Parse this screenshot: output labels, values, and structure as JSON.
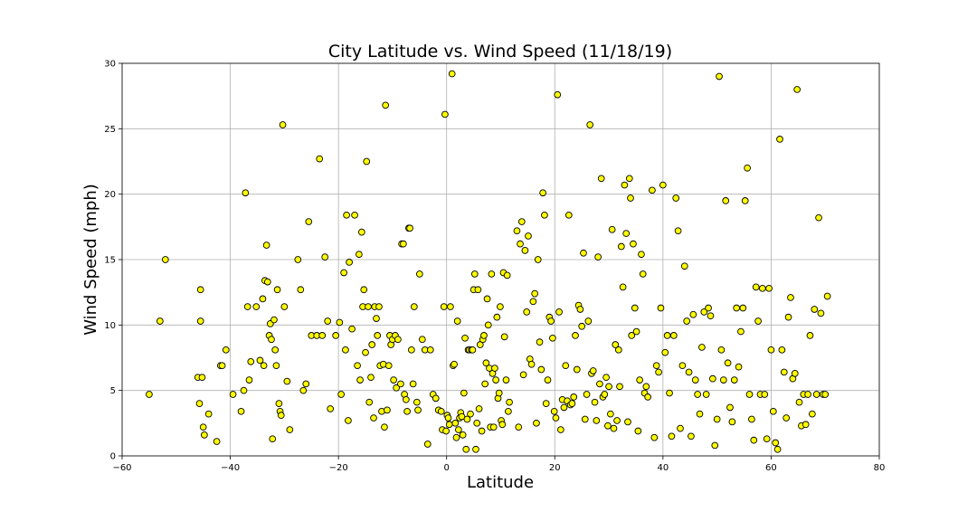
{
  "chart_data": {
    "type": "scatter",
    "title": "City Latitude vs. Wind Speed (11/18/19)",
    "xlabel": "Latitude",
    "ylabel": "Wind Speed (mph)",
    "xlim": [
      -60,
      80
    ],
    "ylim": [
      0,
      30
    ],
    "xticks": [
      -60,
      -40,
      -20,
      0,
      20,
      40,
      60,
      80
    ],
    "yticks": [
      0,
      5,
      10,
      15,
      20,
      25,
      30
    ],
    "grid": true,
    "marker_color": "#ffff00",
    "marker_edge": "#000000",
    "grid_color": "#b0b0b0",
    "points": [
      [
        -55,
        4.7
      ],
      [
        -53,
        10.3
      ],
      [
        -52,
        15
      ],
      [
        -46,
        6
      ],
      [
        -45.7,
        4
      ],
      [
        -45.5,
        12.7
      ],
      [
        -45.5,
        10.3
      ],
      [
        -45.2,
        6
      ],
      [
        -45,
        2.2
      ],
      [
        -44.8,
        1.6
      ],
      [
        -44,
        3.2
      ],
      [
        -42.5,
        1.1
      ],
      [
        -41.8,
        6.9
      ],
      [
        -41.5,
        6.9
      ],
      [
        -40.8,
        8.1
      ],
      [
        -39.5,
        4.7
      ],
      [
        -38,
        3.4
      ],
      [
        -37.5,
        5
      ],
      [
        -37.2,
        20.1
      ],
      [
        -36.8,
        11.4
      ],
      [
        -36.5,
        5.8
      ],
      [
        -36.2,
        7.2
      ],
      [
        -35.2,
        11.4
      ],
      [
        -34.5,
        7.3
      ],
      [
        -34,
        12
      ],
      [
        -33.8,
        6.9
      ],
      [
        -33.6,
        13.4
      ],
      [
        -33.3,
        16.1
      ],
      [
        -33.1,
        13.3
      ],
      [
        -32.8,
        9.2
      ],
      [
        -32.6,
        10.1
      ],
      [
        -32.4,
        8.9
      ],
      [
        -32.2,
        1.3
      ],
      [
        -31.9,
        10.4
      ],
      [
        -31.7,
        8.1
      ],
      [
        -31.5,
        6.9
      ],
      [
        -31.3,
        12.7
      ],
      [
        -31,
        4
      ],
      [
        -30.8,
        3.4
      ],
      [
        -30.6,
        3.1
      ],
      [
        -30.3,
        25.3
      ],
      [
        -30,
        11.4
      ],
      [
        -29.5,
        5.7
      ],
      [
        -29,
        2
      ],
      [
        -27.5,
        15
      ],
      [
        -27,
        12.7
      ],
      [
        -26.5,
        5
      ],
      [
        -26,
        5.5
      ],
      [
        -25.5,
        17.9
      ],
      [
        -25,
        9.2
      ],
      [
        -24,
        9.2
      ],
      [
        -23.5,
        22.7
      ],
      [
        -23,
        9.2
      ],
      [
        -22.5,
        15.2
      ],
      [
        -22,
        10.3
      ],
      [
        -21.5,
        3.6
      ],
      [
        -20.5,
        9.2
      ],
      [
        -19.8,
        10.2
      ],
      [
        -19.5,
        4.7
      ],
      [
        -19,
        14
      ],
      [
        -18.7,
        8.1
      ],
      [
        -18.5,
        18.4
      ],
      [
        -18.2,
        2.7
      ],
      [
        -18,
        14.8
      ],
      [
        -17.5,
        9.7
      ],
      [
        -17,
        18.4
      ],
      [
        -16.5,
        6.9
      ],
      [
        -16.2,
        15.4
      ],
      [
        -16,
        5.8
      ],
      [
        -15.7,
        17.1
      ],
      [
        -15.5,
        11.4
      ],
      [
        -15.3,
        12.7
      ],
      [
        -15,
        7.9
      ],
      [
        -14.8,
        22.5
      ],
      [
        -14.5,
        11.4
      ],
      [
        -14.3,
        4.1
      ],
      [
        -14,
        6
      ],
      [
        -13.8,
        8.5
      ],
      [
        -13.5,
        2.9
      ],
      [
        -13.3,
        11.4
      ],
      [
        -13,
        10.5
      ],
      [
        -12.8,
        9.2
      ],
      [
        -12.5,
        11.4
      ],
      [
        -12.3,
        6.9
      ],
      [
        -12,
        3.4
      ],
      [
        -11.7,
        7
      ],
      [
        -11.5,
        2.2
      ],
      [
        -11.3,
        26.8
      ],
      [
        -11,
        3.5
      ],
      [
        -10.7,
        6.9
      ],
      [
        -10.5,
        9.2
      ],
      [
        -10.3,
        8.5
      ],
      [
        -10,
        8.9
      ],
      [
        -9.8,
        5.8
      ],
      [
        -9.5,
        9.2
      ],
      [
        -9.3,
        5.2
      ],
      [
        -9,
        8.9
      ],
      [
        -8.5,
        5.5
      ],
      [
        -8.3,
        16.2
      ],
      [
        -8,
        16.2
      ],
      [
        -7.8,
        4.7
      ],
      [
        -7.5,
        4.3
      ],
      [
        -7.3,
        3.4
      ],
      [
        -7,
        17.4
      ],
      [
        -6.8,
        17.4
      ],
      [
        -6.5,
        8.1
      ],
      [
        -6.2,
        5.5
      ],
      [
        -6,
        11.4
      ],
      [
        -5.5,
        4.1
      ],
      [
        -5.3,
        3.5
      ],
      [
        -5,
        13.9
      ],
      [
        -4.5,
        8.9
      ],
      [
        -4,
        8.1
      ],
      [
        -3.5,
        0.9
      ],
      [
        -3,
        8.1
      ],
      [
        -2.5,
        4.7
      ],
      [
        -2,
        4.4
      ],
      [
        -1.5,
        3.5
      ],
      [
        -1,
        3.4
      ],
      [
        -0.8,
        2
      ],
      [
        -0.5,
        11.4
      ],
      [
        -0.3,
        26.1
      ],
      [
        -0.1,
        1.9
      ],
      [
        0.1,
        3.1
      ],
      [
        0.3,
        2.9
      ],
      [
        0.5,
        2.4
      ],
      [
        0.7,
        11.4
      ],
      [
        1,
        29.2
      ],
      [
        1.2,
        6.9
      ],
      [
        1.4,
        7
      ],
      [
        1.6,
        2.5
      ],
      [
        1.8,
        1.4
      ],
      [
        2,
        10.3
      ],
      [
        2.2,
        2
      ],
      [
        2.4,
        2.9
      ],
      [
        2.6,
        3.3
      ],
      [
        2.8,
        3
      ],
      [
        3,
        1.6
      ],
      [
        3.2,
        4.8
      ],
      [
        3.4,
        9
      ],
      [
        3.6,
        0.5
      ],
      [
        3.8,
        2.8
      ],
      [
        4,
        8.1
      ],
      [
        4.2,
        8.1
      ],
      [
        4.4,
        3.2
      ],
      [
        4.6,
        8.1
      ],
      [
        4.8,
        8.1
      ],
      [
        5,
        12.7
      ],
      [
        5.2,
        13.9
      ],
      [
        5.4,
        0.5
      ],
      [
        5.6,
        2.5
      ],
      [
        5.8,
        12.7
      ],
      [
        6,
        3.6
      ],
      [
        6.2,
        8.5
      ],
      [
        6.5,
        1.9
      ],
      [
        6.7,
        8.9
      ],
      [
        6.9,
        9.2
      ],
      [
        7.1,
        5.5
      ],
      [
        7.3,
        7.1
      ],
      [
        7.5,
        12
      ],
      [
        7.7,
        10
      ],
      [
        7.9,
        6.7
      ],
      [
        8.1,
        2.2
      ],
      [
        8.3,
        13.9
      ],
      [
        8.5,
        6.3
      ],
      [
        8.7,
        2.2
      ],
      [
        8.9,
        6.7
      ],
      [
        9.1,
        5.8
      ],
      [
        9.3,
        10.6
      ],
      [
        9.5,
        4.4
      ],
      [
        9.7,
        4.8
      ],
      [
        9.9,
        11.4
      ],
      [
        10.1,
        2.7
      ],
      [
        10.3,
        2.4
      ],
      [
        10.5,
        14
      ],
      [
        10.7,
        9.1
      ],
      [
        11,
        5.8
      ],
      [
        11.2,
        13.8
      ],
      [
        11.4,
        3.4
      ],
      [
        11.6,
        4.1
      ],
      [
        13,
        17.2
      ],
      [
        13.3,
        2.2
      ],
      [
        13.6,
        16.2
      ],
      [
        13.9,
        17.9
      ],
      [
        14.2,
        6.2
      ],
      [
        14.5,
        15.7
      ],
      [
        14.8,
        11
      ],
      [
        15.1,
        16.8
      ],
      [
        15.4,
        7.4
      ],
      [
        15.7,
        7
      ],
      [
        16,
        11.8
      ],
      [
        16.3,
        12.4
      ],
      [
        16.6,
        2.5
      ],
      [
        16.9,
        15
      ],
      [
        17.2,
        8.7
      ],
      [
        17.5,
        6.6
      ],
      [
        17.8,
        20.1
      ],
      [
        18.1,
        18.4
      ],
      [
        18.4,
        4
      ],
      [
        18.7,
        5.8
      ],
      [
        19,
        10.6
      ],
      [
        19.3,
        10.3
      ],
      [
        19.6,
        9
      ],
      [
        19.9,
        3.4
      ],
      [
        20.2,
        2.9
      ],
      [
        20.5,
        27.6
      ],
      [
        20.8,
        11
      ],
      [
        21.1,
        2
      ],
      [
        21.4,
        4.3
      ],
      [
        21.7,
        3.7
      ],
      [
        22,
        6.9
      ],
      [
        22.3,
        4.2
      ],
      [
        22.6,
        18.4
      ],
      [
        22.9,
        3.9
      ],
      [
        23.2,
        4
      ],
      [
        23.5,
        4.5
      ],
      [
        23.8,
        9.2
      ],
      [
        24.1,
        6.6
      ],
      [
        24.4,
        11.5
      ],
      [
        24.7,
        11.2
      ],
      [
        25,
        9.9
      ],
      [
        25.3,
        15.5
      ],
      [
        25.6,
        2.8
      ],
      [
        25.9,
        4.7
      ],
      [
        26.2,
        10.3
      ],
      [
        26.5,
        25.3
      ],
      [
        26.8,
        6.3
      ],
      [
        27.1,
        6.5
      ],
      [
        27.4,
        4.1
      ],
      [
        27.7,
        2.7
      ],
      [
        28,
        15.2
      ],
      [
        28.3,
        5.5
      ],
      [
        28.6,
        21.2
      ],
      [
        28.9,
        4.5
      ],
      [
        29.2,
        4.7
      ],
      [
        29.5,
        6
      ],
      [
        29.8,
        2.3
      ],
      [
        30,
        5.3
      ],
      [
        30.3,
        3.2
      ],
      [
        30.6,
        17.3
      ],
      [
        30.9,
        2.1
      ],
      [
        31.2,
        8.5
      ],
      [
        31.5,
        2.7
      ],
      [
        31.8,
        8.1
      ],
      [
        32,
        5.3
      ],
      [
        32.3,
        16
      ],
      [
        32.6,
        12.9
      ],
      [
        32.9,
        20.7
      ],
      [
        33.2,
        17
      ],
      [
        33.5,
        2.6
      ],
      [
        33.8,
        21.2
      ],
      [
        34,
        19.7
      ],
      [
        34.2,
        9.2
      ],
      [
        34.5,
        16.2
      ],
      [
        34.8,
        11.3
      ],
      [
        35.1,
        9.5
      ],
      [
        35.4,
        1.9
      ],
      [
        35.7,
        5.8
      ],
      [
        36,
        15.4
      ],
      [
        36.3,
        13.9
      ],
      [
        36.6,
        4.8
      ],
      [
        36.9,
        5.3
      ],
      [
        37.2,
        4.5
      ],
      [
        38,
        20.3
      ],
      [
        38.4,
        1.4
      ],
      [
        38.8,
        6.9
      ],
      [
        39.2,
        6.4
      ],
      [
        39.6,
        11.3
      ],
      [
        40,
        20.7
      ],
      [
        40.4,
        7.9
      ],
      [
        40.8,
        9.2
      ],
      [
        41.2,
        4.8
      ],
      [
        41.6,
        1.5
      ],
      [
        42,
        9.2
      ],
      [
        42.4,
        19.7
      ],
      [
        42.8,
        17.2
      ],
      [
        43.2,
        2.1
      ],
      [
        43.6,
        6.9
      ],
      [
        44,
        14.5
      ],
      [
        44.4,
        10.3
      ],
      [
        44.8,
        6.4
      ],
      [
        45.2,
        1.5
      ],
      [
        45.6,
        10.8
      ],
      [
        46,
        5.8
      ],
      [
        46.4,
        4.7
      ],
      [
        46.8,
        3.2
      ],
      [
        47.2,
        8.3
      ],
      [
        47.6,
        11
      ],
      [
        48,
        4.7
      ],
      [
        48.4,
        11.3
      ],
      [
        48.8,
        10.7
      ],
      [
        49.2,
        5.9
      ],
      [
        49.6,
        0.8
      ],
      [
        50,
        2.8
      ],
      [
        50.4,
        29
      ],
      [
        50.8,
        8.1
      ],
      [
        51.2,
        5.8
      ],
      [
        51.6,
        19.5
      ],
      [
        52,
        7.1
      ],
      [
        52.4,
        3.7
      ],
      [
        52.8,
        2.6
      ],
      [
        53.2,
        5.8
      ],
      [
        53.6,
        11.3
      ],
      [
        54,
        6.8
      ],
      [
        54.4,
        9.5
      ],
      [
        54.8,
        11.3
      ],
      [
        55.2,
        19.5
      ],
      [
        55.6,
        22
      ],
      [
        56,
        4.7
      ],
      [
        56.4,
        2.8
      ],
      [
        56.8,
        1.2
      ],
      [
        57.2,
        12.9
      ],
      [
        57.6,
        10.3
      ],
      [
        58,
        4.7
      ],
      [
        58.4,
        12.8
      ],
      [
        58.8,
        4.7
      ],
      [
        59.2,
        1.3
      ],
      [
        59.6,
        12.8
      ],
      [
        60,
        8.1
      ],
      [
        60.4,
        3.4
      ],
      [
        60.8,
        1
      ],
      [
        61.2,
        0.5
      ],
      [
        61.6,
        24.2
      ],
      [
        62,
        8.1
      ],
      [
        62.4,
        6.4
      ],
      [
        62.8,
        2.9
      ],
      [
        63.2,
        10.6
      ],
      [
        63.6,
        12.1
      ],
      [
        64,
        5.9
      ],
      [
        64.4,
        6.3
      ],
      [
        64.8,
        28
      ],
      [
        65.2,
        4.1
      ],
      [
        65.6,
        2.3
      ],
      [
        66,
        4.7
      ],
      [
        66.4,
        2.4
      ],
      [
        66.8,
        4.7
      ],
      [
        67.2,
        9.2
      ],
      [
        67.6,
        3.2
      ],
      [
        68,
        11.2
      ],
      [
        68.4,
        4.7
      ],
      [
        68.8,
        18.2
      ],
      [
        69.2,
        10.9
      ],
      [
        69.6,
        4.7
      ],
      [
        70,
        4.7
      ],
      [
        70.4,
        12.2
      ]
    ]
  }
}
